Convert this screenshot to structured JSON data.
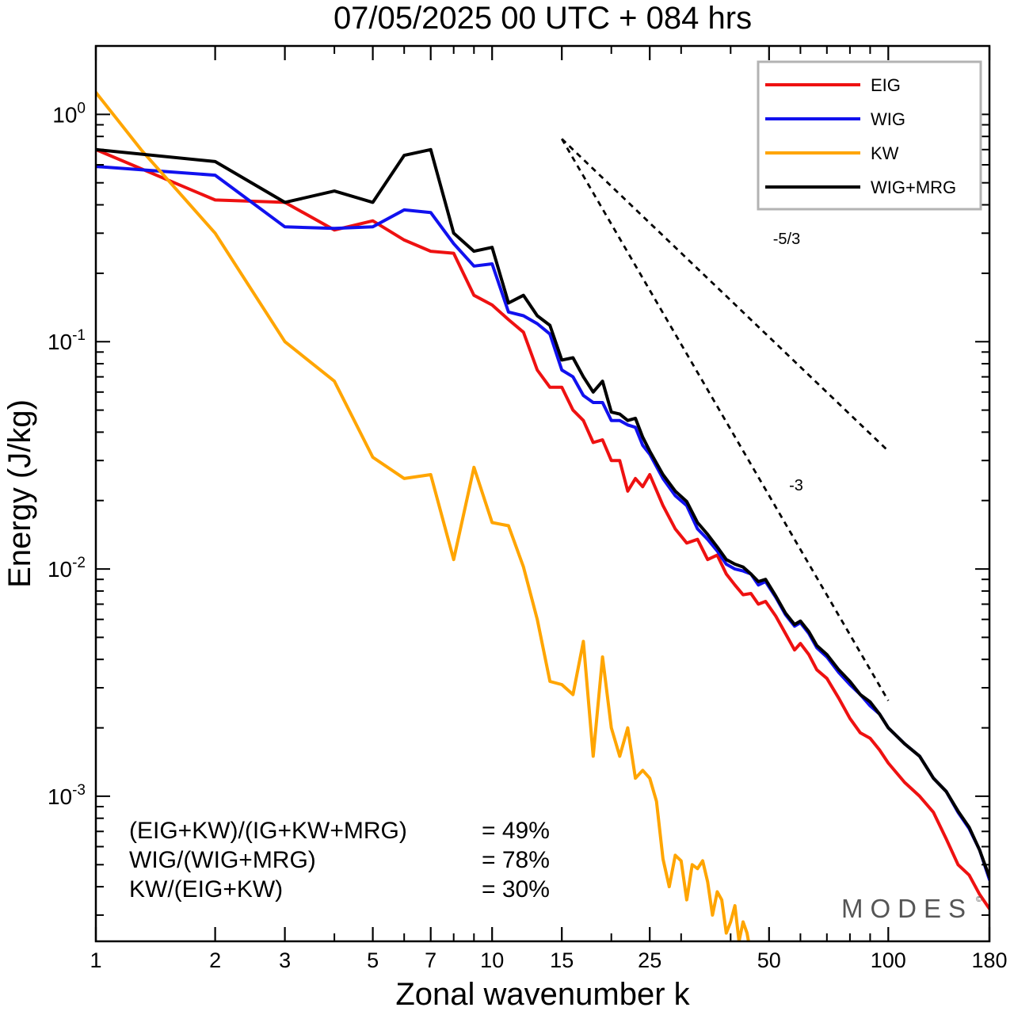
{
  "chart_data": {
    "type": "line",
    "title": "07/05/2025  00 UTC  + 084 hrs",
    "xlabel": "Zonal wavenumber k",
    "ylabel": "Energy (J/kg)",
    "x_scale": "log",
    "y_scale": "log",
    "xlim": [
      1,
      180
    ],
    "ylim": [
      0.00023,
      2.0
    ],
    "x_ticks": [
      1,
      2,
      3,
      5,
      7,
      10,
      15,
      25,
      50,
      100,
      180
    ],
    "x_tick_labels": [
      "1",
      "2",
      "3",
      "5",
      "7",
      "10",
      "15",
      "25",
      "50",
      "100",
      "180"
    ],
    "y_ticks": [
      {
        "value": 1,
        "base": "10",
        "exp": "0"
      },
      {
        "value": 0.1,
        "base": "10",
        "exp": "-1"
      },
      {
        "value": 0.01,
        "base": "10",
        "exp": "-2"
      },
      {
        "value": 0.001,
        "base": "10",
        "exp": "-3"
      }
    ],
    "grid": false,
    "legend_position": "top-right",
    "series": [
      {
        "name": "EIG",
        "color": "#ee1111",
        "points": [
          [
            1,
            0.7
          ],
          [
            2,
            0.42
          ],
          [
            3,
            0.41
          ],
          [
            4,
            0.31
          ],
          [
            5,
            0.34
          ],
          [
            6,
            0.28
          ],
          [
            7,
            0.25
          ],
          [
            8,
            0.245
          ],
          [
            9,
            0.16
          ],
          [
            10,
            0.145
          ],
          [
            11,
            0.125
          ],
          [
            12,
            0.11
          ],
          [
            13,
            0.075
          ],
          [
            14,
            0.063
          ],
          [
            15,
            0.063
          ],
          [
            16,
            0.05
          ],
          [
            17,
            0.045
          ],
          [
            18,
            0.036
          ],
          [
            19,
            0.037
          ],
          [
            20,
            0.03
          ],
          [
            21,
            0.03
          ],
          [
            22,
            0.022
          ],
          [
            23,
            0.025
          ],
          [
            24,
            0.023
          ],
          [
            25,
            0.026
          ],
          [
            27,
            0.019
          ],
          [
            29,
            0.015
          ],
          [
            31,
            0.013
          ],
          [
            33,
            0.0135
          ],
          [
            35,
            0.011
          ],
          [
            37,
            0.0115
          ],
          [
            39,
            0.0095
          ],
          [
            41,
            0.0085
          ],
          [
            43,
            0.0077
          ],
          [
            45,
            0.0078
          ],
          [
            47,
            0.007
          ],
          [
            49,
            0.0072
          ],
          [
            52,
            0.0062
          ],
          [
            55,
            0.0052
          ],
          [
            58,
            0.0044
          ],
          [
            60,
            0.0047
          ],
          [
            63,
            0.0042
          ],
          [
            66,
            0.0036
          ],
          [
            70,
            0.0033
          ],
          [
            75,
            0.0027
          ],
          [
            80,
            0.0022
          ],
          [
            85,
            0.0019
          ],
          [
            90,
            0.0018
          ],
          [
            95,
            0.0016
          ],
          [
            100,
            0.0014
          ],
          [
            110,
            0.00115
          ],
          [
            120,
            0.001
          ],
          [
            130,
            0.00085
          ],
          [
            140,
            0.00065
          ],
          [
            150,
            0.0005
          ],
          [
            160,
            0.00045
          ],
          [
            170,
            0.00037
          ],
          [
            180,
            0.00032
          ]
        ]
      },
      {
        "name": "WIG",
        "color": "#1111ee",
        "points": [
          [
            1,
            0.59
          ],
          [
            2,
            0.54
          ],
          [
            3,
            0.32
          ],
          [
            4,
            0.315
          ],
          [
            5,
            0.32
          ],
          [
            6,
            0.38
          ],
          [
            7,
            0.37
          ],
          [
            8,
            0.27
          ],
          [
            9,
            0.215
          ],
          [
            10,
            0.22
          ],
          [
            11,
            0.135
          ],
          [
            12,
            0.13
          ],
          [
            13,
            0.12
          ],
          [
            14,
            0.108
          ],
          [
            15,
            0.075
          ],
          [
            16,
            0.07
          ],
          [
            17,
            0.058
          ],
          [
            18,
            0.054
          ],
          [
            19,
            0.054
          ],
          [
            20,
            0.045
          ],
          [
            21,
            0.045
          ],
          [
            22,
            0.043
          ],
          [
            23,
            0.042
          ],
          [
            24,
            0.035
          ],
          [
            25,
            0.032
          ],
          [
            27,
            0.025
          ],
          [
            29,
            0.021
          ],
          [
            31,
            0.019
          ],
          [
            33,
            0.015
          ],
          [
            35,
            0.0135
          ],
          [
            37,
            0.012
          ],
          [
            39,
            0.0105
          ],
          [
            41,
            0.01
          ],
          [
            43,
            0.0098
          ],
          [
            45,
            0.0095
          ],
          [
            47,
            0.0085
          ],
          [
            49,
            0.0088
          ],
          [
            52,
            0.0075
          ],
          [
            55,
            0.0063
          ],
          [
            58,
            0.0056
          ],
          [
            60,
            0.0058
          ],
          [
            63,
            0.0052
          ],
          [
            66,
            0.0045
          ],
          [
            70,
            0.0041
          ],
          [
            75,
            0.0035
          ],
          [
            80,
            0.0031
          ],
          [
            85,
            0.0028
          ],
          [
            90,
            0.0025
          ],
          [
            95,
            0.0023
          ],
          [
            100,
            0.002
          ],
          [
            110,
            0.0017
          ],
          [
            120,
            0.0015
          ],
          [
            130,
            0.0012
          ],
          [
            140,
            0.00105
          ],
          [
            150,
            0.00085
          ],
          [
            160,
            0.00072
          ],
          [
            170,
            0.00058
          ],
          [
            180,
            0.00043
          ]
        ]
      },
      {
        "name": "KW",
        "color": "#ffa500",
        "points": [
          [
            1,
            1.25
          ],
          [
            1.3,
            0.7
          ],
          [
            2,
            0.3
          ],
          [
            3,
            0.1
          ],
          [
            4,
            0.067
          ],
          [
            5,
            0.031
          ],
          [
            6,
            0.025
          ],
          [
            7,
            0.026
          ],
          [
            8,
            0.011
          ],
          [
            9,
            0.028
          ],
          [
            10,
            0.016
          ],
          [
            11,
            0.0155
          ],
          [
            12,
            0.0102
          ],
          [
            13,
            0.006
          ],
          [
            14,
            0.0032
          ],
          [
            15,
            0.0031
          ],
          [
            16,
            0.0028
          ],
          [
            17,
            0.0048
          ],
          [
            18,
            0.0015
          ],
          [
            19,
            0.0041
          ],
          [
            20,
            0.002
          ],
          [
            21,
            0.0015
          ],
          [
            22,
            0.002
          ],
          [
            23,
            0.0012
          ],
          [
            24,
            0.0013
          ],
          [
            25,
            0.0012
          ],
          [
            26,
            0.00095
          ],
          [
            27,
            0.00053
          ],
          [
            28,
            0.0004
          ],
          [
            29,
            0.00055
          ],
          [
            30,
            0.00052
          ],
          [
            31,
            0.00035
          ],
          [
            32,
            0.0005
          ],
          [
            33,
            0.00048
          ],
          [
            34,
            0.00052
          ],
          [
            35,
            0.00042
          ],
          [
            36,
            0.0003
          ],
          [
            37,
            0.00038
          ],
          [
            38,
            0.00035
          ],
          [
            39,
            0.00025
          ],
          [
            40,
            0.00028
          ],
          [
            41,
            0.00033
          ],
          [
            42,
            0.00023
          ],
          [
            43,
            0.00028
          ],
          [
            44,
            0.00025
          ],
          [
            45,
            0.0002
          ]
        ]
      },
      {
        "name": "WIG+MRG",
        "color": "#000000",
        "points": [
          [
            1,
            0.7
          ],
          [
            2,
            0.62
          ],
          [
            3,
            0.41
          ],
          [
            4,
            0.46
          ],
          [
            5,
            0.41
          ],
          [
            6,
            0.66
          ],
          [
            7,
            0.7
          ],
          [
            8,
            0.3
          ],
          [
            9,
            0.25
          ],
          [
            10,
            0.26
          ],
          [
            11,
            0.148
          ],
          [
            12,
            0.16
          ],
          [
            13,
            0.13
          ],
          [
            14,
            0.118
          ],
          [
            15,
            0.083
          ],
          [
            16,
            0.085
          ],
          [
            17,
            0.07
          ],
          [
            18,
            0.06
          ],
          [
            19,
            0.067
          ],
          [
            20,
            0.049
          ],
          [
            21,
            0.048
          ],
          [
            22,
            0.045
          ],
          [
            23,
            0.046
          ],
          [
            24,
            0.038
          ],
          [
            25,
            0.033
          ],
          [
            27,
            0.026
          ],
          [
            29,
            0.022
          ],
          [
            31,
            0.0198
          ],
          [
            33,
            0.016
          ],
          [
            35,
            0.0142
          ],
          [
            37,
            0.0125
          ],
          [
            39,
            0.011
          ],
          [
            41,
            0.0105
          ],
          [
            43,
            0.0102
          ],
          [
            45,
            0.0095
          ],
          [
            47,
            0.0088
          ],
          [
            49,
            0.009
          ],
          [
            52,
            0.0076
          ],
          [
            55,
            0.0064
          ],
          [
            58,
            0.0057
          ],
          [
            60,
            0.0059
          ],
          [
            63,
            0.0053
          ],
          [
            66,
            0.0046
          ],
          [
            70,
            0.0042
          ],
          [
            75,
            0.0036
          ],
          [
            80,
            0.0032
          ],
          [
            85,
            0.0028
          ],
          [
            90,
            0.0026
          ],
          [
            95,
            0.0023
          ],
          [
            100,
            0.002
          ],
          [
            110,
            0.0017
          ],
          [
            120,
            0.0015
          ],
          [
            130,
            0.0012
          ],
          [
            140,
            0.00105
          ],
          [
            150,
            0.00086
          ],
          [
            160,
            0.00073
          ],
          [
            170,
            0.00058
          ],
          [
            180,
            0.00044
          ]
        ]
      }
    ],
    "reference_slopes": [
      {
        "label": "-5/3",
        "slope": -1.6667,
        "x": [
          15,
          100
        ],
        "y0": 0.78
      },
      {
        "label": "-3",
        "slope": -3,
        "x": [
          15,
          100
        ],
        "y0": 0.78
      }
    ],
    "stats": [
      {
        "label": "(EIG+KW)/(IG+KW+MRG)",
        "value": "= 49%"
      },
      {
        "label": "WIG/(WIG+MRG)",
        "value": "= 78%"
      },
      {
        "label": "KW/(EIG+KW)",
        "value": "= 30%"
      }
    ],
    "watermark": "MODES",
    "watermark_mark": "©"
  }
}
